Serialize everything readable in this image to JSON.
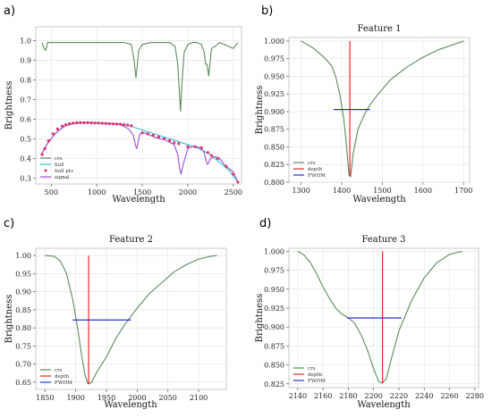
{
  "figure": {
    "background": "#ffffff"
  },
  "colors": {
    "crs": "#5e8a5e",
    "hull": "#2ec4cc",
    "hull_pts": "#e0306a",
    "signal": "#9b4fd6",
    "depth": "#e8262a",
    "fwhm": "#2a32d8",
    "grid": "#e6e6e6"
  },
  "chart_data": [
    {
      "panel_label": "a)",
      "type": "line",
      "title": "",
      "xlabel": "Wavelength",
      "ylabel": "Brightness",
      "xlim": [
        330,
        2590
      ],
      "ylim": [
        0.27,
        1.07
      ],
      "xticks": [
        500,
        1000,
        1500,
        2000,
        2500
      ],
      "yticks": [
        0.3,
        0.4,
        0.5,
        0.6,
        0.7,
        0.8,
        0.9,
        1.0
      ],
      "ytick_labels": [
        "0.3",
        "0.4",
        "0.5",
        "0.6",
        "0.7",
        "0.8",
        "0.9",
        "1.0"
      ],
      "grid": true,
      "legend_position": "bottom-left",
      "legend": [
        {
          "label": "crs",
          "kind": "line",
          "color_key": "crs"
        },
        {
          "label": "hull",
          "kind": "line",
          "color_key": "hull"
        },
        {
          "label": "hull pts",
          "kind": "marker",
          "color_key": "hull_pts"
        },
        {
          "label": "signal",
          "kind": "line",
          "color_key": "signal"
        }
      ],
      "series": [
        {
          "name": "crs",
          "color_key": "crs",
          "x": [
            400,
            420,
            440,
            460,
            500,
            600,
            700,
            800,
            900,
            1000,
            1100,
            1200,
            1300,
            1380,
            1410,
            1430,
            1440,
            1460,
            1500,
            1600,
            1700,
            1800,
            1860,
            1890,
            1910,
            1920,
            1935,
            1960,
            2000,
            2050,
            2100,
            2150,
            2180,
            2195,
            2210,
            2230,
            2260,
            2300,
            2350,
            2400,
            2450,
            2500,
            2550
          ],
          "y": [
            0.99,
            0.96,
            0.95,
            0.99,
            0.99,
            0.99,
            0.99,
            0.99,
            0.99,
            0.99,
            0.99,
            0.99,
            0.99,
            0.98,
            0.9,
            0.81,
            0.85,
            0.95,
            0.98,
            0.99,
            0.99,
            0.99,
            0.97,
            0.88,
            0.72,
            0.64,
            0.78,
            0.94,
            0.98,
            0.99,
            0.99,
            0.98,
            0.94,
            0.88,
            0.88,
            0.82,
            0.96,
            0.97,
            0.99,
            0.98,
            0.97,
            0.96,
            0.99
          ]
        },
        {
          "name": "hull",
          "color_key": "hull",
          "x": [
            390,
            450,
            550,
            650,
            750,
            850,
            950,
            1050,
            1150,
            1250,
            1350,
            1500,
            1700,
            1900,
            2100,
            2250,
            2350,
            2450,
            2550
          ],
          "y": [
            0.42,
            0.47,
            0.53,
            0.565,
            0.578,
            0.582,
            0.582,
            0.58,
            0.577,
            0.575,
            0.567,
            0.545,
            0.515,
            0.485,
            0.455,
            0.42,
            0.38,
            0.34,
            0.28
          ]
        },
        {
          "name": "signal",
          "color_key": "signal",
          "x": [
            390,
            450,
            550,
            650,
            750,
            850,
            950,
            1050,
            1150,
            1250,
            1350,
            1400,
            1430,
            1440,
            1470,
            1500,
            1550,
            1650,
            1750,
            1850,
            1890,
            1910,
            1925,
            1950,
            2000,
            2050,
            2100,
            2150,
            2180,
            2200,
            2215,
            2230,
            2250,
            2300,
            2350,
            2400,
            2450,
            2500,
            2550
          ],
          "y": [
            0.42,
            0.47,
            0.53,
            0.565,
            0.578,
            0.582,
            0.582,
            0.58,
            0.577,
            0.575,
            0.55,
            0.52,
            0.46,
            0.45,
            0.52,
            0.535,
            0.525,
            0.505,
            0.495,
            0.47,
            0.42,
            0.35,
            0.32,
            0.37,
            0.45,
            0.46,
            0.46,
            0.45,
            0.43,
            0.39,
            0.37,
            0.38,
            0.4,
            0.41,
            0.4,
            0.37,
            0.35,
            0.33,
            0.28
          ]
        },
        {
          "name": "hull pts",
          "color_key": "hull_pts",
          "kind": "scatter",
          "x": [
            400,
            430,
            470,
            520,
            570,
            620,
            660,
            700,
            740,
            780,
            820,
            860,
            900,
            940,
            980,
            1020,
            1060,
            1100,
            1140,
            1180,
            1220,
            1260,
            1300,
            1340,
            1380,
            1500,
            1560,
            1620,
            1680,
            1740,
            1800,
            1850,
            1900,
            2000,
            2080,
            2150,
            2220,
            2260,
            2330,
            2420,
            2500,
            2550
          ],
          "y": [
            0.42,
            0.45,
            0.49,
            0.525,
            0.55,
            0.565,
            0.572,
            0.577,
            0.58,
            0.582,
            0.582,
            0.582,
            0.582,
            0.581,
            0.58,
            0.58,
            0.579,
            0.578,
            0.577,
            0.576,
            0.575,
            0.574,
            0.572,
            0.57,
            0.566,
            0.53,
            0.525,
            0.518,
            0.51,
            0.5,
            0.49,
            0.48,
            0.475,
            0.46,
            0.46,
            0.455,
            0.43,
            0.415,
            0.4,
            0.36,
            0.32,
            0.28
          ]
        }
      ]
    },
    {
      "panel_label": "b)",
      "type": "line",
      "title": "Feature 1",
      "xlabel": "Wavelength",
      "ylabel": "Brightness",
      "xlim": [
        1270,
        1715
      ],
      "ylim": [
        0.8,
        1.005
      ],
      "xticks": [
        1300,
        1400,
        1500,
        1600,
        1700
      ],
      "yticks": [
        0.8,
        0.825,
        0.85,
        0.875,
        0.9,
        0.925,
        0.95,
        0.975,
        1.0
      ],
      "ytick_labels": [
        "0.800",
        "0.825",
        "0.850",
        "0.875",
        "0.900",
        "0.925",
        "0.950",
        "0.975",
        "1.000"
      ],
      "grid": true,
      "legend_position": "bottom-left",
      "legend": [
        {
          "label": "crs",
          "kind": "line",
          "color_key": "crs"
        },
        {
          "label": "depth",
          "kind": "line",
          "color_key": "depth"
        },
        {
          "label": "FWHM",
          "kind": "line",
          "color_key": "fwhm"
        }
      ],
      "series": [
        {
          "name": "crs",
          "color_key": "crs",
          "x": [
            1300,
            1330,
            1360,
            1375,
            1385,
            1395,
            1405,
            1412,
            1418,
            1422,
            1428,
            1440,
            1455,
            1470,
            1490,
            1520,
            1560,
            1600,
            1640,
            1680,
            1700
          ],
          "y": [
            1.0,
            0.99,
            0.975,
            0.965,
            0.95,
            0.925,
            0.89,
            0.85,
            0.81,
            0.808,
            0.84,
            0.875,
            0.895,
            0.91,
            0.925,
            0.945,
            0.963,
            0.977,
            0.988,
            0.996,
            1.0
          ]
        },
        {
          "name": "depth",
          "color_key": "depth",
          "kind": "vline",
          "x": [
            1420,
            1420
          ],
          "y": [
            0.808,
            1.0
          ]
        },
        {
          "name": "FWHM",
          "color_key": "fwhm",
          "kind": "hline",
          "x": [
            1380,
            1470
          ],
          "y": [
            0.903,
            0.903
          ]
        }
      ]
    },
    {
      "panel_label": "c)",
      "type": "line",
      "title": "Feature 2",
      "xlabel": "Wavelength",
      "ylabel": "Brightness",
      "xlim": [
        1835,
        2145
      ],
      "ylim": [
        0.63,
        1.02
      ],
      "xticks": [
        1850,
        1900,
        1950,
        2000,
        2050,
        2100
      ],
      "yticks": [
        0.65,
        0.7,
        0.75,
        0.8,
        0.85,
        0.9,
        0.95,
        1.0
      ],
      "ytick_labels": [
        "0.65",
        "0.70",
        "0.75",
        "0.80",
        "0.85",
        "0.90",
        "0.95",
        "1.00"
      ],
      "grid": true,
      "legend_position": "bottom-left",
      "legend": [
        {
          "label": "crs",
          "kind": "line",
          "color_key": "crs"
        },
        {
          "label": "depth",
          "kind": "line",
          "color_key": "depth"
        },
        {
          "label": "FWHM",
          "kind": "line",
          "color_key": "fwhm"
        }
      ],
      "series": [
        {
          "name": "crs",
          "color_key": "crs",
          "x": [
            1850,
            1865,
            1875,
            1885,
            1895,
            1903,
            1910,
            1915,
            1920,
            1926,
            1935,
            1950,
            1965,
            1980,
            2000,
            2020,
            2040,
            2060,
            2080,
            2100,
            2120,
            2130
          ],
          "y": [
            1.0,
            0.998,
            0.985,
            0.95,
            0.88,
            0.8,
            0.72,
            0.67,
            0.645,
            0.65,
            0.68,
            0.72,
            0.77,
            0.81,
            0.855,
            0.895,
            0.925,
            0.955,
            0.975,
            0.99,
            0.998,
            1.0
          ]
        },
        {
          "name": "depth",
          "color_key": "depth",
          "kind": "vline",
          "x": [
            1921,
            1921
          ],
          "y": [
            0.645,
            1.0
          ]
        },
        {
          "name": "FWHM",
          "color_key": "fwhm",
          "kind": "hline",
          "x": [
            1895,
            1990
          ],
          "y": [
            0.822,
            0.822
          ]
        }
      ]
    },
    {
      "panel_label": "d)",
      "type": "line",
      "title": "Feature 3",
      "xlabel": "Wavelength",
      "ylabel": "Brightness",
      "xlim": [
        2133,
        2283
      ],
      "ylim": [
        0.82,
        1.004
      ],
      "xticks": [
        2140,
        2160,
        2180,
        2200,
        2220,
        2240,
        2260,
        2280
      ],
      "yticks": [
        0.825,
        0.85,
        0.875,
        0.9,
        0.925,
        0.95,
        0.975,
        1.0
      ],
      "ytick_labels": [
        "0.825",
        "0.850",
        "0.875",
        "0.900",
        "0.925",
        "0.950",
        "0.975",
        "1.000"
      ],
      "grid": true,
      "legend_position": "bottom-left",
      "legend": [
        {
          "label": "crs",
          "kind": "line",
          "color_key": "crs"
        },
        {
          "label": "depth",
          "kind": "line",
          "color_key": "depth"
        },
        {
          "label": "FWHM",
          "kind": "line",
          "color_key": "fwhm"
        }
      ],
      "series": [
        {
          "name": "crs",
          "color_key": "crs",
          "x": [
            2140,
            2145,
            2150,
            2155,
            2160,
            2165,
            2170,
            2175,
            2180,
            2185,
            2190,
            2195,
            2200,
            2204,
            2207,
            2210,
            2214,
            2220,
            2230,
            2240,
            2250,
            2260,
            2270
          ],
          "y": [
            1.0,
            0.995,
            0.985,
            0.97,
            0.953,
            0.938,
            0.925,
            0.917,
            0.912,
            0.905,
            0.89,
            0.87,
            0.845,
            0.828,
            0.826,
            0.832,
            0.858,
            0.895,
            0.935,
            0.965,
            0.985,
            0.996,
            1.0
          ]
        },
        {
          "name": "depth",
          "color_key": "depth",
          "kind": "vline",
          "x": [
            2207,
            2207
          ],
          "y": [
            0.826,
            1.0
          ]
        },
        {
          "name": "FWHM",
          "color_key": "fwhm",
          "kind": "hline",
          "x": [
            2179,
            2222
          ],
          "y": [
            0.912,
            0.912
          ]
        }
      ]
    }
  ]
}
